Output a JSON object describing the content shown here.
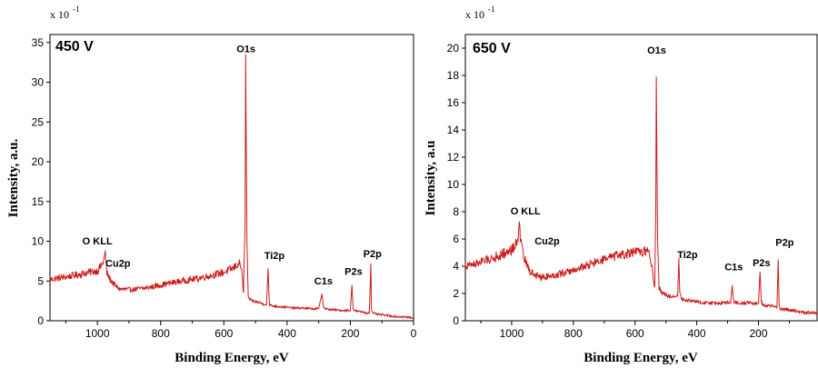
{
  "chart_data": [
    {
      "type": "line",
      "condition_label": "450 V",
      "xlabel": "Binding Energy, eV",
      "ylabel": "Intensity, a.u.",
      "y_scale_label": "x 10",
      "y_scale_exponent": "-1",
      "xlim": [
        1150,
        0
      ],
      "ylim": [
        0,
        36
      ],
      "x_ticks": [
        {
          "value": 1000,
          "label": "1000"
        },
        {
          "value": 800,
          "label": "800"
        },
        {
          "value": 600,
          "label": "600"
        },
        {
          "value": 400,
          "label": "400"
        },
        {
          "value": 200,
          "label": "200"
        },
        {
          "value": 0,
          "label": "0"
        }
      ],
      "y_ticks": [
        {
          "value": 0,
          "label": "0"
        },
        {
          "value": 5,
          "label": "5"
        },
        {
          "value": 10,
          "label": "10"
        },
        {
          "value": 15,
          "label": "15"
        },
        {
          "value": 20,
          "label": "20"
        },
        {
          "value": 25,
          "label": "25"
        },
        {
          "value": 30,
          "label": "30"
        },
        {
          "value": 35,
          "label": "35"
        }
      ],
      "line_color": "#cc1a1a",
      "series": [
        {
          "x": [
            1150,
            1100,
            1050,
            1000,
            990,
            980,
            975,
            970,
            960,
            950,
            940,
            930,
            900,
            850,
            800,
            750,
            700,
            650,
            600,
            570,
            560,
            550,
            545,
            538,
            533,
            531,
            529,
            527,
            523,
            515,
            500,
            480,
            465,
            460,
            457,
            455,
            450,
            430,
            400,
            380,
            350,
            320,
            300,
            290,
            285,
            280,
            260,
            230,
            200,
            195,
            191,
            187,
            180,
            160,
            150,
            140,
            135,
            133,
            130,
            125,
            110,
            90,
            70,
            50,
            30,
            10,
            0
          ],
          "y": [
            5.2,
            5.5,
            5.9,
            6.3,
            6.8,
            7.5,
            8.6,
            6.0,
            5.2,
            4.7,
            4.3,
            4.0,
            3.9,
            4.1,
            4.5,
            4.9,
            5.2,
            5.6,
            6.1,
            6.6,
            7.0,
            7.2,
            6.8,
            3.5,
            12.0,
            32.0,
            20.0,
            10.0,
            3.0,
            2.5,
            2.4,
            2.2,
            2.0,
            6.6,
            3.0,
            2.0,
            1.9,
            1.8,
            1.7,
            1.6,
            1.6,
            1.5,
            1.5,
            3.5,
            1.8,
            1.5,
            1.4,
            1.3,
            1.3,
            4.5,
            1.5,
            1.3,
            1.2,
            1.1,
            1.0,
            1.0,
            7.2,
            1.5,
            1.0,
            0.9,
            0.8,
            0.7,
            0.6,
            0.5,
            0.5,
            0.4,
            0.4
          ]
        }
      ],
      "annotations": [
        {
          "text": "O KLL",
          "x": 1000,
          "y": 9.6
        },
        {
          "text": "Cu2p",
          "x": 935,
          "y": 6.8
        },
        {
          "text": "O1s",
          "x": 530,
          "y": 33.8
        },
        {
          "text": "Ti2p",
          "x": 440,
          "y": 7.8
        },
        {
          "text": "C1s",
          "x": 285,
          "y": 4.6
        },
        {
          "text": "P2s",
          "x": 190,
          "y": 5.8
        },
        {
          "text": "P2p",
          "x": 130,
          "y": 8.0
        }
      ]
    },
    {
      "type": "line",
      "condition_label": "650 V",
      "xlabel": "Binding Energy, eV",
      "ylabel": "Intensity, a.u",
      "y_scale_label": "x 10",
      "y_scale_exponent": "-1",
      "xlim": [
        1150,
        10
      ],
      "ylim": [
        0,
        21
      ],
      "x_ticks": [
        {
          "value": 1000,
          "label": "1000"
        },
        {
          "value": 800,
          "label": "800"
        },
        {
          "value": 600,
          "label": "600"
        },
        {
          "value": 400,
          "label": "400"
        },
        {
          "value": 200,
          "label": "200"
        }
      ],
      "y_ticks": [
        {
          "value": 0,
          "label": "0"
        },
        {
          "value": 2,
          "label": "2"
        },
        {
          "value": 4,
          "label": "4"
        },
        {
          "value": 6,
          "label": "6"
        },
        {
          "value": 8,
          "label": "8"
        },
        {
          "value": 10,
          "label": "10"
        },
        {
          "value": 12,
          "label": "12"
        },
        {
          "value": 14,
          "label": "14"
        },
        {
          "value": 16,
          "label": "16"
        },
        {
          "value": 18,
          "label": "18"
        },
        {
          "value": 20,
          "label": "20"
        }
      ],
      "line_color": "#cc1a1a",
      "series": [
        {
          "x": [
            1150,
            1100,
            1050,
            1000,
            985,
            975,
            970,
            960,
            950,
            940,
            920,
            900,
            850,
            800,
            750,
            700,
            650,
            600,
            570,
            560,
            555,
            545,
            540,
            536,
            533,
            531,
            529,
            527,
            522,
            510,
            490,
            470,
            462,
            458,
            455,
            450,
            430,
            400,
            370,
            340,
            310,
            290,
            285,
            280,
            260,
            230,
            200,
            195,
            191,
            187,
            180,
            160,
            145,
            140,
            136,
            133,
            130,
            110,
            80,
            50,
            30,
            10
          ],
          "y": [
            4.0,
            4.3,
            4.7,
            5.2,
            5.7,
            6.8,
            5.8,
            4.6,
            4.1,
            3.6,
            3.3,
            3.2,
            3.4,
            3.7,
            4.1,
            4.5,
            4.8,
            5.0,
            5.1,
            5.2,
            4.9,
            4.0,
            3.0,
            2.5,
            8.0,
            18.3,
            12.0,
            6.0,
            2.4,
            2.0,
            1.8,
            1.8,
            1.8,
            4.6,
            2.2,
            1.6,
            1.5,
            1.4,
            1.3,
            1.3,
            1.3,
            1.4,
            2.6,
            1.4,
            1.3,
            1.3,
            1.3,
            3.6,
            1.4,
            1.2,
            1.1,
            1.1,
            1.0,
            1.0,
            4.5,
            1.2,
            0.9,
            0.8,
            0.7,
            0.6,
            0.6,
            0.5
          ]
        }
      ],
      "annotations": [
        {
          "text": "O KLL",
          "x": 955,
          "y": 7.8
        },
        {
          "text": "Cu2p",
          "x": 885,
          "y": 5.6
        },
        {
          "text": "O1s",
          "x": 530,
          "y": 19.6
        },
        {
          "text": "Ti2p",
          "x": 430,
          "y": 4.6
        },
        {
          "text": "C1s",
          "x": 280,
          "y": 3.7
        },
        {
          "text": "P2s",
          "x": 190,
          "y": 4.0
        },
        {
          "text": "P2p",
          "x": 115,
          "y": 5.5
        }
      ]
    }
  ]
}
